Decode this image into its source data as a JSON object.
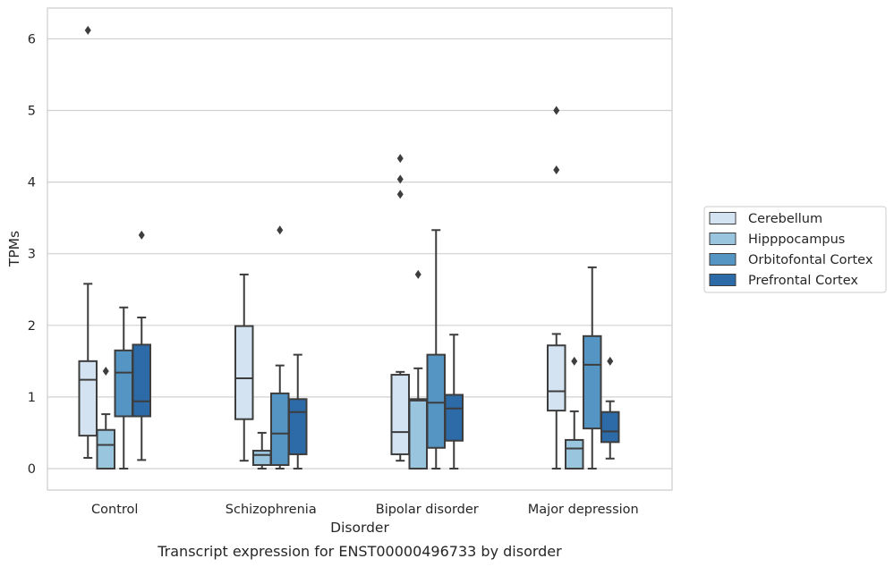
{
  "chart_data": {
    "type": "box",
    "xlabel": "Disorder",
    "ylabel": "TPMs",
    "caption": "Transcript expression for ENST00000496733 by disorder",
    "ylim": [
      -0.3,
      6.43
    ],
    "yticks": [
      0,
      1,
      2,
      3,
      4,
      5,
      6
    ],
    "grid": "horizontal",
    "legend_position": "right",
    "categories": [
      "Control",
      "Schizophrenia",
      "Bipolar disorder",
      "Major depression"
    ],
    "series": [
      {
        "name": "Cerebellum",
        "color": "#d4e3f2",
        "boxes": [
          {
            "whisker_low": 0.15,
            "q1": 0.46,
            "median": 1.24,
            "q3": 1.5,
            "whisker_high": 2.58,
            "outliers": [
              6.12
            ]
          },
          {
            "whisker_low": 0.11,
            "q1": 0.69,
            "median": 1.26,
            "q3": 1.99,
            "whisker_high": 2.71,
            "outliers": []
          },
          {
            "whisker_low": 0.11,
            "q1": 0.2,
            "median": 0.51,
            "q3": 1.31,
            "whisker_high": 1.35,
            "outliers": [
              3.83,
              4.04,
              4.33
            ]
          },
          {
            "whisker_low": 0.0,
            "q1": 0.81,
            "median": 1.08,
            "q3": 1.72,
            "whisker_high": 1.88,
            "outliers": [
              4.17,
              5.0
            ]
          }
        ]
      },
      {
        "name": "Hipppocampus",
        "color": "#9ac5df",
        "boxes": [
          {
            "whisker_low": 0.0,
            "q1": 0.0,
            "median": 0.33,
            "q3": 0.54,
            "whisker_high": 0.76,
            "outliers": [
              1.36
            ]
          },
          {
            "whisker_low": 0.0,
            "q1": 0.05,
            "median": 0.19,
            "q3": 0.25,
            "whisker_high": 0.5,
            "outliers": []
          },
          {
            "whisker_low": 0.0,
            "q1": 0.0,
            "median": 0.95,
            "q3": 0.97,
            "whisker_high": 1.4,
            "outliers": [
              2.71
            ]
          },
          {
            "whisker_low": 0.0,
            "q1": 0.0,
            "median": 0.28,
            "q3": 0.4,
            "whisker_high": 0.8,
            "outliers": [
              1.5
            ]
          }
        ]
      },
      {
        "name": "Orbitofontal Cortex",
        "color": "#5495c4",
        "boxes": [
          {
            "whisker_low": 0.0,
            "q1": 0.73,
            "median": 1.34,
            "q3": 1.65,
            "whisker_high": 2.25,
            "outliers": []
          },
          {
            "whisker_low": 0.0,
            "q1": 0.05,
            "median": 0.49,
            "q3": 1.05,
            "whisker_high": 1.44,
            "outliers": [
              3.33
            ]
          },
          {
            "whisker_low": 0.0,
            "q1": 0.29,
            "median": 0.92,
            "q3": 1.59,
            "whisker_high": 3.33,
            "outliers": []
          },
          {
            "whisker_low": 0.0,
            "q1": 0.56,
            "median": 1.45,
            "q3": 1.85,
            "whisker_high": 2.81,
            "outliers": []
          }
        ]
      },
      {
        "name": "Prefrontal Cortex",
        "color": "#2d6aa8",
        "boxes": [
          {
            "whisker_low": 0.12,
            "q1": 0.73,
            "median": 0.94,
            "q3": 1.73,
            "whisker_high": 2.11,
            "outliers": [
              3.26
            ]
          },
          {
            "whisker_low": 0.0,
            "q1": 0.2,
            "median": 0.79,
            "q3": 0.97,
            "whisker_high": 1.59,
            "outliers": []
          },
          {
            "whisker_low": 0.0,
            "q1": 0.39,
            "median": 0.84,
            "q3": 1.03,
            "whisker_high": 1.87,
            "outliers": []
          },
          {
            "whisker_low": 0.14,
            "q1": 0.37,
            "median": 0.52,
            "q3": 0.79,
            "whisker_high": 0.94,
            "outliers": [
              1.5
            ]
          }
        ]
      }
    ]
  }
}
